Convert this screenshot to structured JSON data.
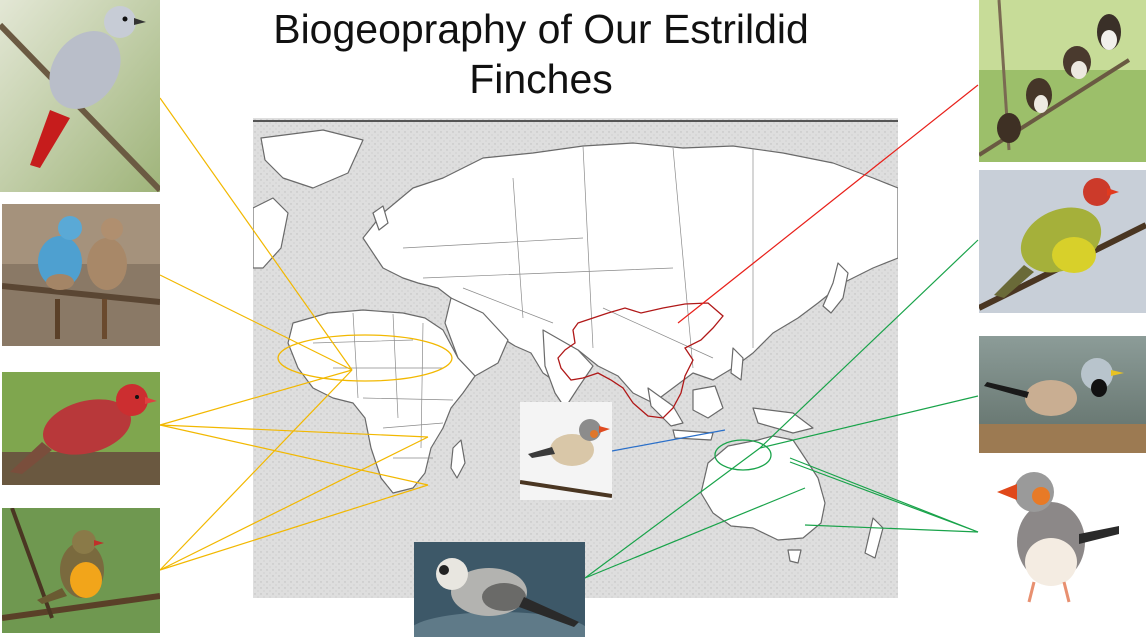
{
  "slide": {
    "title_line1": "Biogeopraphy of Our Estrildid",
    "title_line2": "Finches"
  },
  "colors": {
    "africa_lines": "#f2b800",
    "asia_line": "#e8201a",
    "australia_lines": "#19a34a",
    "indonesia_line": "#2a6fc9",
    "range_outline": "#b01818",
    "ocean": "#dcdcdc",
    "land": "#ffffff"
  },
  "photos": [
    {
      "name": "lavender-waxbill-photo",
      "icon": "grey-finch-red-tail"
    },
    {
      "name": "cordon-bleu-photo",
      "icon": "blue-finch-pair"
    },
    {
      "name": "firefinch-photo",
      "icon": "red-finch"
    },
    {
      "name": "orange-breasted-waxbill-photo",
      "icon": "orange-finch"
    },
    {
      "name": "zebra-finch-center-photo",
      "icon": "zebra-finch"
    },
    {
      "name": "owl-finch-photo",
      "icon": "double-barred-finch"
    },
    {
      "name": "munia-photo",
      "icon": "munia-group"
    },
    {
      "name": "star-finch-photo",
      "icon": "star-finch"
    },
    {
      "name": "long-tailed-finch-photo",
      "icon": "long-tailed-finch"
    },
    {
      "name": "zebra-finch-right-photo",
      "icon": "zebra-finch"
    }
  ]
}
